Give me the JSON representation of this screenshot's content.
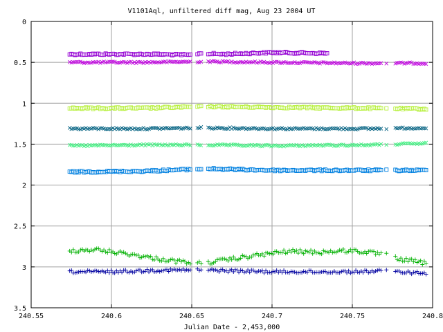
{
  "chart_data": {
    "type": "scatter",
    "title": "V1101Aql, unfiltered diff mag, Aug 23 2004 UT",
    "xlabel": "Julian Date - 2,453,000",
    "ylabel": "",
    "xlim": [
      240.55,
      240.8
    ],
    "ylim": [
      0,
      3.5
    ],
    "y_inverted": true,
    "grid": true,
    "x_ticks": [
      240.55,
      240.6,
      240.65,
      240.7,
      240.75,
      240.8
    ],
    "x_tick_labels": [
      "240.55",
      "240.6",
      "240.65",
      "240.7",
      "240.75",
      "240.8"
    ],
    "y_ticks": [
      0,
      0.5,
      1,
      1.5,
      2,
      2.5,
      3,
      3.5
    ],
    "y_tick_labels": [
      "0",
      "0.5",
      "1",
      "1.5",
      "2",
      "2.5",
      "3",
      "3.5"
    ],
    "x_start": 240.574,
    "x_end": 240.797,
    "gaps": [
      [
        240.6495,
        240.6525
      ],
      [
        240.6565,
        240.6595
      ],
      [
        240.7685,
        240.7705
      ],
      [
        240.7715,
        240.7765
      ]
    ],
    "series": [
      {
        "marker": "square",
        "color": "#9400d3",
        "x_end": 240.735,
        "points": [
          [
            240.574,
            0.4
          ],
          [
            240.6,
            0.4
          ],
          [
            240.625,
            0.4
          ],
          [
            240.649,
            0.41
          ],
          [
            240.655,
            0.39
          ],
          [
            240.67,
            0.4
          ],
          [
            240.7,
            0.38
          ],
          [
            240.735,
            0.39
          ]
        ],
        "noise": 0.01
      },
      {
        "marker": "x",
        "color": "#c000e0",
        "points": [
          [
            240.574,
            0.5
          ],
          [
            240.62,
            0.5
          ],
          [
            240.66,
            0.49
          ],
          [
            240.7,
            0.5
          ],
          [
            240.75,
            0.51
          ],
          [
            240.797,
            0.51
          ]
        ],
        "noise": 0.01
      },
      {
        "marker": "square",
        "color": "#b8f040",
        "points": [
          [
            240.574,
            1.06
          ],
          [
            240.62,
            1.06
          ],
          [
            240.66,
            1.04
          ],
          [
            240.7,
            1.05
          ],
          [
            240.76,
            1.06
          ],
          [
            240.797,
            1.07
          ]
        ],
        "noise": 0.01
      },
      {
        "marker": "x",
        "color": "#006080",
        "points": [
          [
            240.574,
            1.31
          ],
          [
            240.62,
            1.31
          ],
          [
            240.66,
            1.3
          ],
          [
            240.7,
            1.31
          ],
          [
            240.76,
            1.31
          ],
          [
            240.797,
            1.3
          ]
        ],
        "noise": 0.01
      },
      {
        "marker": "x",
        "color": "#40f080",
        "points": [
          [
            240.574,
            1.52
          ],
          [
            240.62,
            1.51
          ],
          [
            240.66,
            1.51
          ],
          [
            240.7,
            1.52
          ],
          [
            240.76,
            1.51
          ],
          [
            240.797,
            1.49
          ]
        ],
        "noise": 0.01
      },
      {
        "marker": "square",
        "color": "#0080e0",
        "points": [
          [
            240.574,
            1.84
          ],
          [
            240.62,
            1.83
          ],
          [
            240.66,
            1.8
          ],
          [
            240.7,
            1.82
          ],
          [
            240.76,
            1.82
          ],
          [
            240.797,
            1.82
          ]
        ],
        "noise": 0.01
      },
      {
        "marker": "plus",
        "color": "#00b000",
        "points": [
          [
            240.574,
            2.8
          ],
          [
            240.59,
            2.79
          ],
          [
            240.61,
            2.84
          ],
          [
            240.625,
            2.89
          ],
          [
            240.64,
            2.93
          ],
          [
            240.655,
            2.96
          ],
          [
            240.67,
            2.92
          ],
          [
            240.69,
            2.86
          ],
          [
            240.71,
            2.81
          ],
          [
            240.73,
            2.82
          ],
          [
            240.75,
            2.8
          ],
          [
            240.77,
            2.85
          ],
          [
            240.778,
            2.9
          ],
          [
            240.797,
            2.96
          ]
        ],
        "noise": 0.025
      },
      {
        "marker": "plus",
        "color": "#0000a0",
        "points": [
          [
            240.574,
            3.06
          ],
          [
            240.6,
            3.06
          ],
          [
            240.63,
            3.04
          ],
          [
            240.66,
            3.04
          ],
          [
            240.7,
            3.06
          ],
          [
            240.75,
            3.06
          ],
          [
            240.77,
            3.05
          ],
          [
            240.797,
            3.08
          ]
        ],
        "noise": 0.018
      }
    ]
  }
}
